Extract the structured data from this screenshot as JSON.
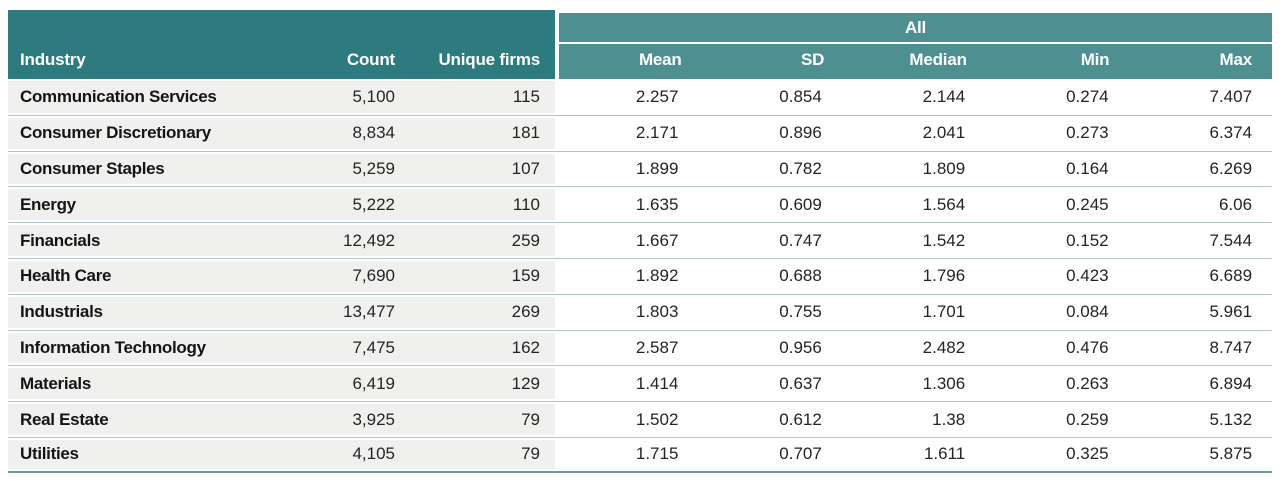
{
  "chart_data": {
    "type": "table",
    "group_header": "All",
    "columns": [
      "Industry",
      "Count",
      "Unique firms",
      "Mean",
      "SD",
      "Median",
      "Min",
      "Max"
    ],
    "rows": [
      [
        "Communication Services",
        "5,100",
        "115",
        "2.257",
        "0.854",
        "2.144",
        "0.274",
        "7.407"
      ],
      [
        "Consumer Discretionary",
        "8,834",
        "181",
        "2.171",
        "0.896",
        "2.041",
        "0.273",
        "6.374"
      ],
      [
        "Consumer Staples",
        "5,259",
        "107",
        "1.899",
        "0.782",
        "1.809",
        "0.164",
        "6.269"
      ],
      [
        "Energy",
        "5,222",
        "110",
        "1.635",
        "0.609",
        "1.564",
        "0.245",
        "6.06"
      ],
      [
        "Financials",
        "12,492",
        "259",
        "1.667",
        "0.747",
        "1.542",
        "0.152",
        "7.544"
      ],
      [
        "Health Care",
        "7,690",
        "159",
        "1.892",
        "0.688",
        "1.796",
        "0.423",
        "6.689"
      ],
      [
        "Industrials",
        "13,477",
        "269",
        "1.803",
        "0.755",
        "1.701",
        "0.084",
        "5.961"
      ],
      [
        "Information Technology",
        "7,475",
        "162",
        "2.587",
        "0.956",
        "2.482",
        "0.476",
        "8.747"
      ],
      [
        "Materials",
        "6,419",
        "129",
        "1.414",
        "0.637",
        "1.306",
        "0.263",
        "6.894"
      ],
      [
        "Real Estate",
        "3,925",
        "79",
        "1.502",
        "0.612",
        "1.38",
        "0.259",
        "5.132"
      ],
      [
        "Utilities",
        "4,105",
        "79",
        "1.715",
        "0.707",
        "1.611",
        "0.325",
        "5.875"
      ]
    ]
  },
  "colors": {
    "header_dark_teal": "#2e7b7f",
    "header_light_teal": "#4e9092",
    "row_gray": "#f0f0ee",
    "row_separator": "#aec2c4",
    "bottom_border": "#6f9b9e"
  }
}
